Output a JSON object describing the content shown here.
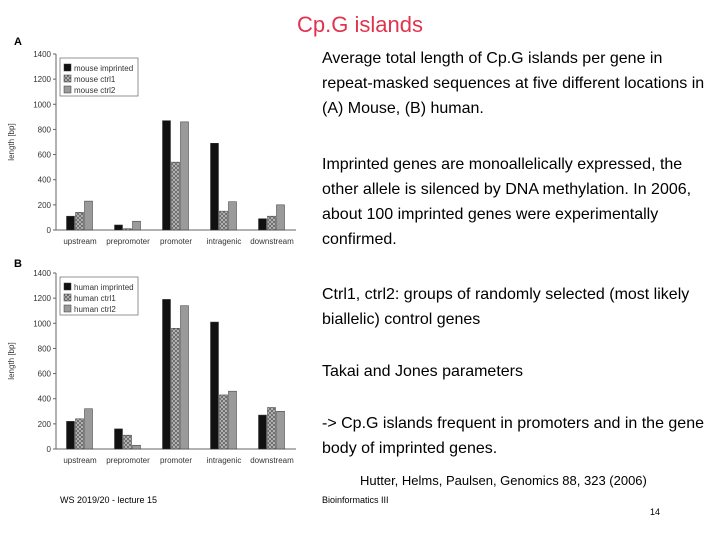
{
  "slide": {
    "title": "Cp.G islands",
    "paragraphs": [
      "Average total length of Cp.G islands per gene in repeat-masked sequences at five different locations in (A) Mouse, (B) human.",
      "Imprinted genes are monoallelically expressed, the other allele is silenced by DNA methylation. In 2006, about 100 imprinted genes were experimentally confirmed.",
      "Ctrl1, ctrl2: groups of randomly selected (most likely biallelic) control genes",
      "Takai and Jones parameters",
      "-> Cp.G islands frequent in promoters and in the gene body of imprinted genes."
    ],
    "citation": "Hutter, Helms, Paulsen, Genomics 88, 323 (2006)",
    "footer_left": "WS 2019/20 - lecture 15",
    "footer_mid": "Bioinformatics III",
    "page_number": "14"
  },
  "colors": {
    "title": "#e0334d",
    "imprinted": "#111111",
    "ctrl1": "#bdbdbd",
    "ctrl2": "#9a9a9a"
  },
  "chart_data": [
    {
      "panel": "A",
      "type": "bar",
      "ylabel": "length [bp]",
      "ylim": [
        0,
        1400
      ],
      "yticks": [
        0,
        200,
        400,
        600,
        800,
        1000,
        1200,
        1400
      ],
      "categories": [
        "upstream",
        "prepromoter",
        "promoter",
        "intragenic",
        "downstream"
      ],
      "series": [
        {
          "name": "mouse imprinted",
          "values": [
            110,
            40,
            870,
            690,
            90
          ]
        },
        {
          "name": "mouse ctrl1",
          "values": [
            140,
            10,
            540,
            150,
            110
          ]
        },
        {
          "name": "mouse ctrl2",
          "values": [
            230,
            70,
            860,
            225,
            200
          ]
        }
      ],
      "legend": "top-left",
      "grid": false
    },
    {
      "panel": "B",
      "type": "bar",
      "ylabel": "length [bp]",
      "ylim": [
        0,
        1400
      ],
      "yticks": [
        0,
        200,
        400,
        600,
        800,
        1000,
        1200,
        1400
      ],
      "categories": [
        "upstream",
        "prepromoter",
        "promoter",
        "intragenic",
        "downstream"
      ],
      "series": [
        {
          "name": "human imprinted",
          "values": [
            220,
            160,
            1190,
            1010,
            270
          ]
        },
        {
          "name": "human ctrl1",
          "values": [
            240,
            110,
            960,
            430,
            330
          ]
        },
        {
          "name": "human ctrl2",
          "values": [
            320,
            30,
            1140,
            460,
            300
          ]
        }
      ],
      "legend": "top-left",
      "grid": false
    }
  ]
}
